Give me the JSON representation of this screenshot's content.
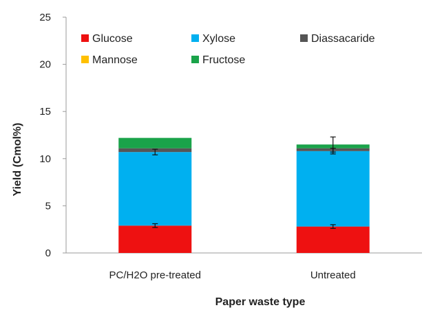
{
  "chart_data": {
    "type": "bar",
    "stacked": true,
    "categories": [
      "PC/H2O pre-treated",
      "Untreated"
    ],
    "xlabel": "Paper waste type",
    "ylabel": "Yield (Cmol%)",
    "ylim": [
      0,
      25
    ],
    "yticks": [
      0,
      5,
      10,
      15,
      20,
      25
    ],
    "grid": false,
    "legend_position": "top-left (inside plot)",
    "series": [
      {
        "name": "Glucose",
        "color": "#ee1111",
        "values": [
          2.9,
          2.8
        ],
        "errors": [
          0.2,
          0.2
        ]
      },
      {
        "name": "Xylose",
        "color": "#00b0f0",
        "values": [
          7.8,
          8.0
        ],
        "errors": [
          0.3,
          0.3
        ]
      },
      {
        "name": "Diassacaride",
        "color": "#555555",
        "values": [
          0.4,
          0.3
        ],
        "errors": [
          0,
          0
        ]
      },
      {
        "name": "Mannose",
        "color": "#ffc000",
        "values": [
          0,
          0
        ],
        "errors": [
          0,
          0
        ]
      },
      {
        "name": "Fructose",
        "color": "#1aa34a",
        "values": [
          1.1,
          0.4
        ],
        "errors": [
          0,
          0.8
        ]
      }
    ]
  }
}
